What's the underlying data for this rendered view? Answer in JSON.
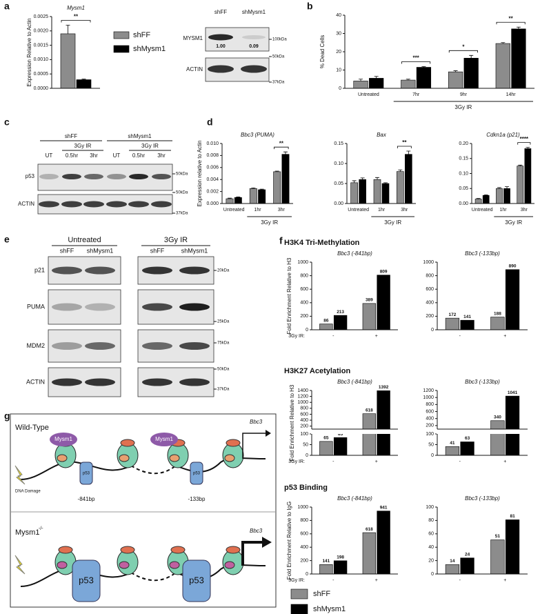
{
  "panel_labels": [
    "a",
    "b",
    "c",
    "d",
    "e",
    "f",
    "g"
  ],
  "chart_data": [
    {
      "type": "bar",
      "title": "Mysm1",
      "ylabel": "Expression Relative to Actin",
      "categories": [
        null
      ],
      "series": [
        {
          "name": "shFF",
          "color": "#8c8c8c",
          "values": [
            0.0019
          ],
          "errors": [
            0.0003
          ]
        },
        {
          "name": "shMysm1",
          "color": "#000000",
          "values": [
            0.0003
          ],
          "errors": [
            2e-05
          ]
        }
      ],
      "ylim": [
        0,
        0.0025
      ],
      "yticks": [
        {
          "value": 0,
          "label": "0.0000"
        },
        {
          "value": 0.0005,
          "label": "0.0005"
        },
        {
          "value": 0.001,
          "label": "0.0010"
        },
        {
          "value": 0.0015,
          "label": "0.0015"
        },
        {
          "value": 0.002,
          "label": "0.0020"
        },
        {
          "value": 0.0025,
          "label": "0.0025"
        }
      ],
      "significance": [
        "**"
      ],
      "legend": "right"
    },
    {
      "type": "bar",
      "ylabel": "% Dead Cells",
      "categories": [
        "Untreated",
        "7hr",
        "9hr",
        "14hr"
      ],
      "series": [
        {
          "name": "shFF",
          "color": "#8c8c8c",
          "values": [
            4,
            4.5,
            9,
            24.5
          ],
          "errors": [
            1,
            0.5,
            0.6,
            0.5
          ]
        },
        {
          "name": "shMysm1",
          "color": "#000000",
          "values": [
            5.5,
            11.5,
            16.5,
            32.5
          ],
          "errors": [
            1,
            0.4,
            1.5,
            1
          ]
        }
      ],
      "ylim": [
        0,
        40
      ],
      "yticks": [
        0,
        10,
        20,
        30,
        40
      ],
      "significance": [
        null,
        "***",
        "*",
        "**"
      ],
      "group_label": "3Gy IR"
    },
    {
      "type": "bar",
      "title": "Bbc3 (PUMA)",
      "ylabel": "Expression relative to Actin",
      "categories": [
        "Untreated",
        "1hr",
        "3hr"
      ],
      "series": [
        {
          "name": "shFF",
          "color": "#8c8c8c",
          "values": [
            0.0008,
            0.0025,
            0.0053
          ],
          "errors": [
            0.0001,
            0.0001,
            0.0001
          ]
        },
        {
          "name": "shMysm1",
          "color": "#000000",
          "values": [
            0.001,
            0.0023,
            0.0082
          ],
          "errors": [
            0.0001,
            0.0001,
            0.0004
          ]
        }
      ],
      "ylim": [
        0,
        0.01
      ],
      "yticks": [
        {
          "value": 0,
          "label": "0.000"
        },
        {
          "value": 0.002,
          "label": "0.002"
        },
        {
          "value": 0.004,
          "label": "0.004"
        },
        {
          "value": 0.006,
          "label": "0.006"
        },
        {
          "value": 0.008,
          "label": "0.008"
        },
        {
          "value": 0.01,
          "label": "0.010"
        }
      ],
      "significance": [
        null,
        null,
        "**"
      ],
      "group_label": "3Gy IR"
    },
    {
      "type": "bar",
      "title": "Bax",
      "categories": [
        "Untreated",
        "1hr",
        "3hr"
      ],
      "series": [
        {
          "name": "shFF",
          "color": "#8c8c8c",
          "values": [
            0.052,
            0.06,
            0.08
          ],
          "errors": [
            0.005,
            0.005,
            0.004
          ]
        },
        {
          "name": "shMysm1",
          "color": "#000000",
          "values": [
            0.06,
            0.05,
            0.123
          ],
          "errors": [
            0.004,
            0.002,
            0.008
          ]
        }
      ],
      "ylim": [
        0,
        0.15
      ],
      "yticks": [
        {
          "value": 0,
          "label": "0.00"
        },
        {
          "value": 0.05,
          "label": "0.05"
        },
        {
          "value": 0.1,
          "label": "0.10"
        },
        {
          "value": 0.15,
          "label": "0.15"
        }
      ],
      "significance": [
        null,
        null,
        "**"
      ],
      "group_label": "3Gy IR"
    },
    {
      "type": "bar",
      "title": "Cdkn1a (p21)",
      "categories": [
        "Untreated",
        "1hr",
        "3hr"
      ],
      "series": [
        {
          "name": "shFF",
          "color": "#8c8c8c",
          "values": [
            0.015,
            0.05,
            0.125
          ],
          "errors": [
            0.002,
            0.003,
            0.003
          ]
        },
        {
          "name": "shMysm1",
          "color": "#000000",
          "values": [
            0.027,
            0.05,
            0.183
          ],
          "errors": [
            0.002,
            0.006,
            0.004
          ]
        }
      ],
      "ylim": [
        0,
        0.2
      ],
      "yticks": [
        {
          "value": 0,
          "label": "0.00"
        },
        {
          "value": 0.05,
          "label": "0.05"
        },
        {
          "value": 0.1,
          "label": "0.10"
        },
        {
          "value": 0.15,
          "label": "0.15"
        },
        {
          "value": 0.2,
          "label": "0.20"
        }
      ],
      "significance": [
        null,
        null,
        "****"
      ],
      "group_label": "3Gy IR"
    },
    {
      "type": "bar",
      "heading": "H3K4 Tri-Methylation",
      "title": "Bbc3 (-841bp)",
      "ylabel": "Fold Enrichment Relative to H3",
      "xlabel": "3Gy IR:",
      "categories": [
        "-",
        "+"
      ],
      "series": [
        {
          "name": "shFF",
          "color": "#8c8c8c",
          "values": [
            86,
            389
          ]
        },
        {
          "name": "shMysm1",
          "color": "#000000",
          "values": [
            213,
            809
          ]
        }
      ],
      "ylim": [
        0,
        1000
      ],
      "yticks": [
        0,
        200,
        400,
        600,
        800,
        1000
      ],
      "data_labels": true
    },
    {
      "type": "bar",
      "title": "Bbc3 (-133bp)",
      "categories": [
        "-",
        "+"
      ],
      "series": [
        {
          "name": "shFF",
          "color": "#8c8c8c",
          "values": [
            172,
            188
          ]
        },
        {
          "name": "shMysm1",
          "color": "#000000",
          "values": [
            141,
            890
          ]
        }
      ],
      "ylim": [
        0,
        1000
      ],
      "yticks": [
        0,
        200,
        400,
        600,
        800,
        1000
      ],
      "data_labels": true
    },
    {
      "type": "bar",
      "heading": "H3K27 Acetylation",
      "title": "Bbc3 (-841bp)",
      "ylabel": "Fold Enrichment Relative to H3",
      "xlabel": "3Gy IR:",
      "categories": [
        "-",
        "+"
      ],
      "series": [
        {
          "name": "shFF",
          "color": "#8c8c8c",
          "values": [
            65,
            618
          ]
        },
        {
          "name": "shMysm1",
          "color": "#000000",
          "values": [
            83,
            1392
          ]
        }
      ],
      "segments": [
        {
          "ylim": [
            0,
            100
          ],
          "yticks": [
            0,
            50,
            100
          ]
        },
        {
          "ylim": [
            100,
            1400
          ],
          "yticks": [
            200,
            400,
            600,
            800,
            1000,
            1200,
            1400
          ]
        }
      ],
      "data_labels": true
    },
    {
      "type": "bar",
      "title": "Bbc3 (-133bp)",
      "categories": [
        "-",
        "+"
      ],
      "series": [
        {
          "name": "shFF",
          "color": "#8c8c8c",
          "values": [
            41,
            340
          ]
        },
        {
          "name": "shMysm1",
          "color": "#000000",
          "values": [
            63,
            1041
          ]
        }
      ],
      "segments": [
        {
          "ylim": [
            0,
            100
          ],
          "yticks": [
            0,
            50,
            100
          ]
        },
        {
          "ylim": [
            100,
            1200
          ],
          "yticks": [
            200,
            400,
            600,
            800,
            1000,
            1200
          ]
        }
      ],
      "data_labels": true
    },
    {
      "type": "bar",
      "heading": "p53 Binding",
      "title": "Bbc3 (-841bp)",
      "ylabel": "Fold Enrichment Relative to IgG",
      "xlabel": "3Gy IR:",
      "categories": [
        "-",
        "+"
      ],
      "series": [
        {
          "name": "shFF",
          "color": "#8c8c8c",
          "values": [
            141,
            618
          ]
        },
        {
          "name": "shMysm1",
          "color": "#000000",
          "values": [
            198,
            941
          ]
        }
      ],
      "ylim": [
        0,
        1000
      ],
      "yticks": [
        0,
        200,
        400,
        600,
        800,
        1000
      ],
      "data_labels": true,
      "legend": "bottom"
    },
    {
      "type": "bar",
      "title": "Bbc3 (-133bp)",
      "categories": [
        "-",
        "+"
      ],
      "series": [
        {
          "name": "shFF",
          "color": "#8c8c8c",
          "values": [
            14,
            51
          ]
        },
        {
          "name": "shMysm1",
          "color": "#000000",
          "values": [
            24,
            81
          ]
        }
      ],
      "ylim": [
        0,
        100
      ],
      "yticks": [
        0,
        20,
        40,
        60,
        80,
        100
      ],
      "data_labels": true
    }
  ],
  "blots": {
    "a": {
      "columns": [
        "shFF",
        "shMysm1"
      ],
      "rows": [
        "MYSM1",
        "ACTIN"
      ],
      "quantification": [
        "1.00",
        "0.09"
      ],
      "markers": [
        "100kDa",
        "50kDa",
        "37kDa"
      ]
    },
    "c": {
      "groups": [
        "shFF",
        "shMysm1"
      ],
      "treatment": [
        "3Gy IR",
        "3Gy IR"
      ],
      "lanes": [
        "UT",
        "0.5hr",
        "3hr",
        "UT",
        "0.5hr",
        "3hr"
      ],
      "rows": [
        "p53",
        "ACTIN"
      ],
      "markers": [
        "50kDa",
        "50kDa",
        "37kDa"
      ]
    },
    "e": {
      "conditions": [
        "Untreated",
        "3Gy IR"
      ],
      "lanes": [
        "shFF",
        "shMysm1",
        "shFF",
        "shMysm1"
      ],
      "rows": [
        "p21",
        "PUMA",
        "MDM2",
        "ACTIN"
      ],
      "markers": [
        "20kDa",
        "25kDa",
        "75kDa",
        "50kDa",
        "37kDa"
      ]
    }
  },
  "diagram": {
    "wild_type": "Wild-Type",
    "knockout": "Mysm1",
    "knockout_sup": "-/-",
    "mysm1_labels": [
      "Mysm1",
      "Mysm1"
    ],
    "gene": [
      "Bbc3",
      "Bbc3"
    ],
    "damage": "DNA Damage",
    "p53": [
      "p53",
      "p53",
      "p53",
      "p53"
    ],
    "sites": [
      "-841bp",
      "-133bp"
    ]
  }
}
